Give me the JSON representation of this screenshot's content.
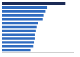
{
  "chart_data": {
    "type": "bar",
    "orientation": "horizontal",
    "categories": [
      null,
      null,
      null,
      null,
      null,
      null,
      null,
      null,
      null,
      null,
      null,
      null,
      null
    ],
    "values": [
      88,
      63,
      60,
      58,
      57,
      50,
      48,
      47,
      46,
      46,
      45,
      43,
      40
    ],
    "colors": [
      "#1b2a55",
      "#2f6bbf",
      "#2f6bbf",
      "#2f6bbf",
      "#2f6bbf",
      "#2f6bbf",
      "#2f6bbf",
      "#2f6bbf",
      "#2f6bbf",
      "#2f6bbf",
      "#2f6bbf",
      "#2f6bbf",
      "#2f6bbf"
    ],
    "xlim": [
      0,
      100
    ],
    "xticks": [],
    "grid": false,
    "tick_labels": false
  }
}
